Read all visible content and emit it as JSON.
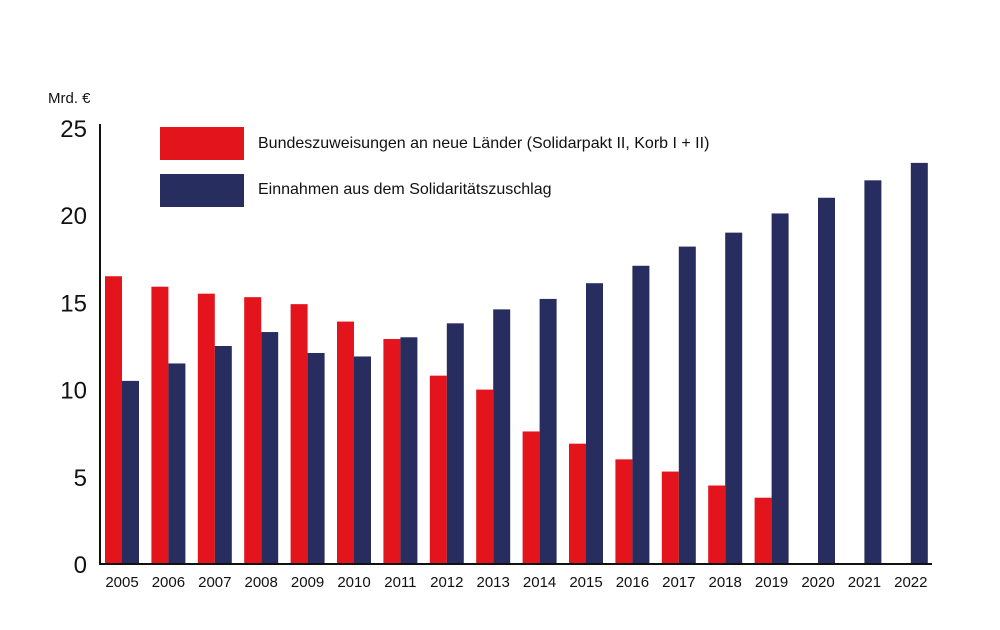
{
  "chart_data": {
    "type": "bar",
    "ylabel": "Mrd. €",
    "ylim": [
      0,
      25
    ],
    "yticks": [
      0,
      5,
      10,
      15,
      20,
      25
    ],
    "grid": false,
    "legend_position": "top-left",
    "categories": [
      "2005",
      "2006",
      "2007",
      "2008",
      "2009",
      "2010",
      "2011",
      "2012",
      "2013",
      "2014",
      "2015",
      "2016",
      "2017",
      "2018",
      "2019",
      "2020",
      "2021",
      "2022"
    ],
    "series": [
      {
        "name": "Bundeszuweisungen an neue Länder (Solidarpakt II, Korb I + II)",
        "color": "#e3141c",
        "values": [
          16.5,
          15.9,
          15.5,
          15.3,
          14.9,
          13.9,
          12.9,
          10.8,
          10.0,
          7.6,
          6.9,
          6.0,
          5.3,
          4.5,
          3.8,
          null,
          null,
          null
        ]
      },
      {
        "name": "Einnahmen aus dem Solidaritätszuschlag",
        "color": "#272d5e",
        "values": [
          10.5,
          11.5,
          12.5,
          13.3,
          12.1,
          11.9,
          13.0,
          13.8,
          14.6,
          15.2,
          16.1,
          17.1,
          18.2,
          19.0,
          20.1,
          21.0,
          22.0,
          23.0
        ]
      }
    ]
  }
}
